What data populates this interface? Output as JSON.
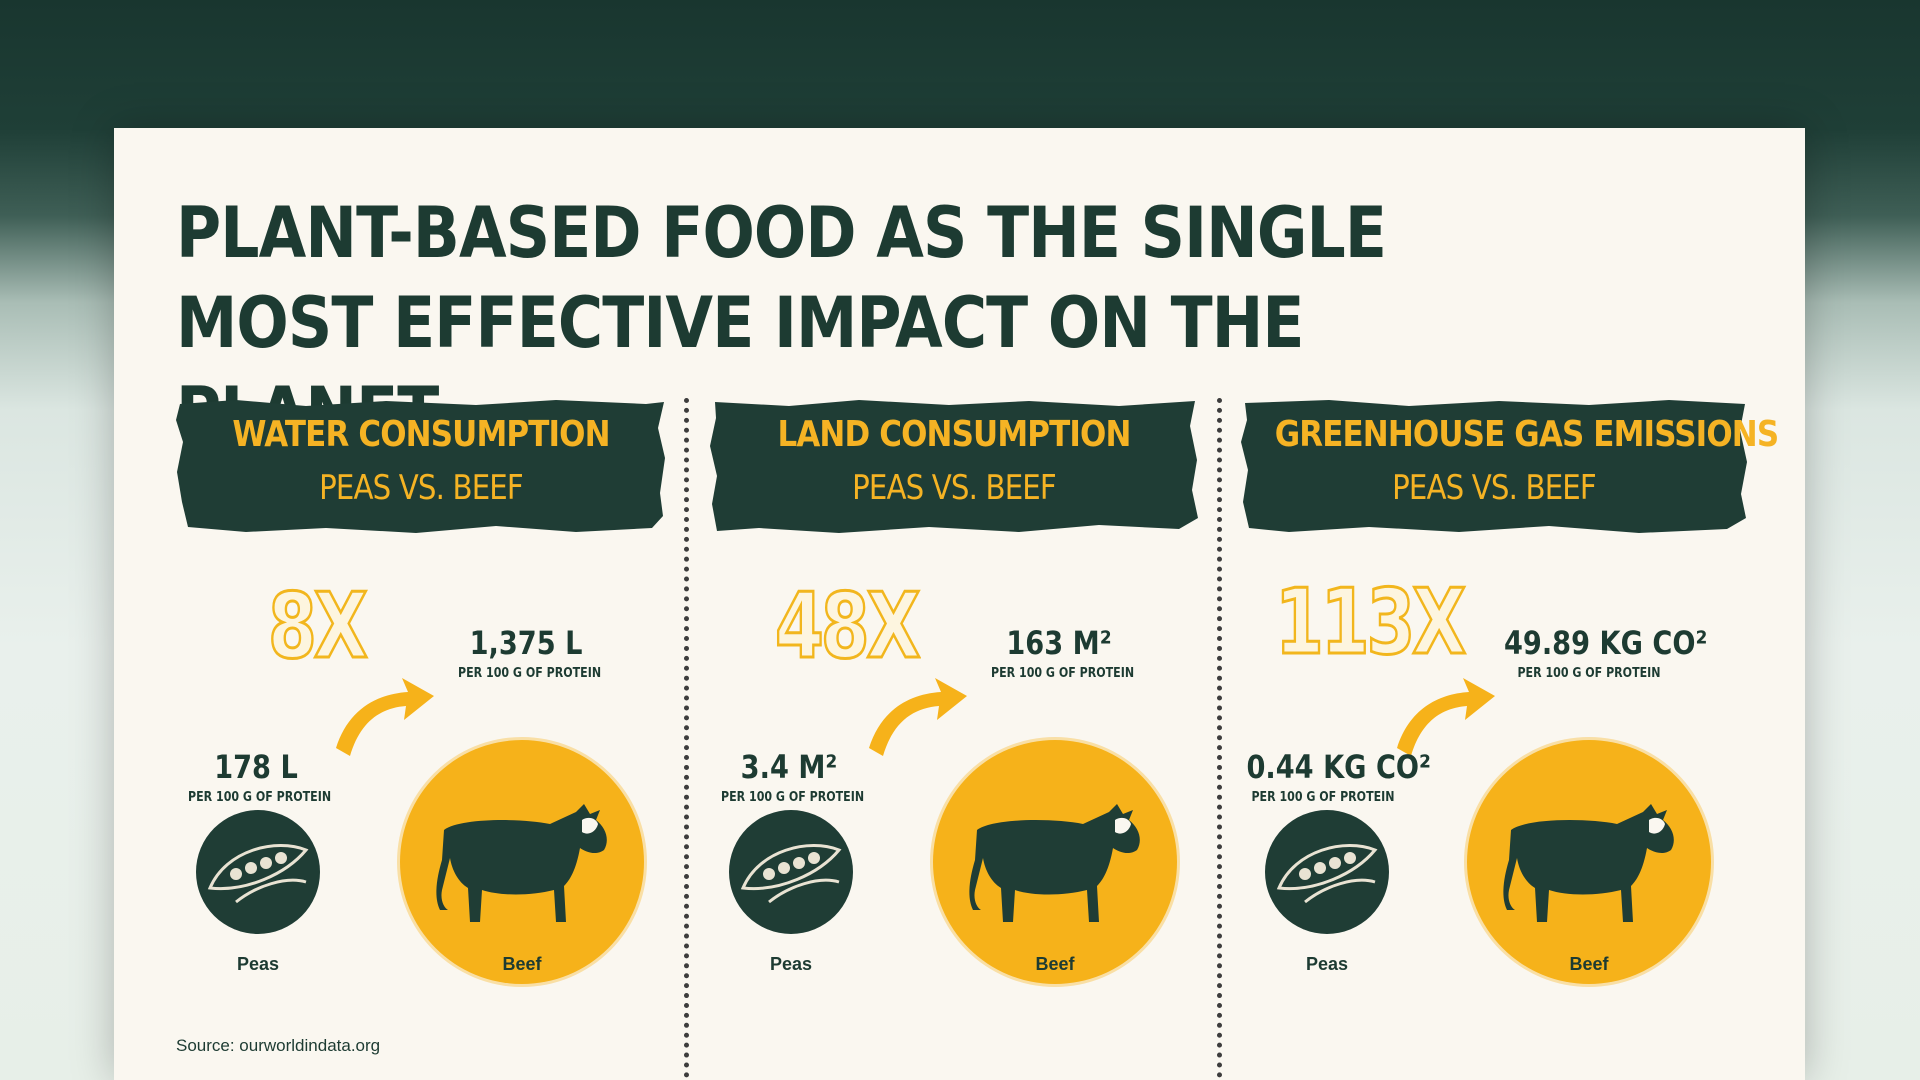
{
  "title": "PLANT-BASED FOOD AS THE SINGLE MOST EFFECTIVE IMPACT ON THE PLANET",
  "colors": {
    "dark_green": "#1d3b32",
    "yellow": "#f6b21a",
    "cream": "#faf7f0"
  },
  "panels": [
    {
      "heading": "WATER CONSUMPTION",
      "subheading": "PEAS VS. BEEF",
      "multiplier": "8X",
      "peas": {
        "value": "178 L",
        "unit": "PER 100 G OF PROTEIN",
        "label": "Peas"
      },
      "beef": {
        "value": "1,375 L",
        "unit": "PER 100 G OF PROTEIN",
        "label": "Beef"
      }
    },
    {
      "heading": "LAND CONSUMPTION",
      "subheading": "PEAS VS. BEEF",
      "multiplier": "48X",
      "peas": {
        "value": "3.4 M²",
        "unit": "PER 100 G OF PROTEIN",
        "label": "Peas"
      },
      "beef": {
        "value": "163 M²",
        "unit": "PER 100 G OF PROTEIN",
        "label": "Beef"
      }
    },
    {
      "heading": "GREENHOUSE GAS EMISSIONS",
      "subheading": "PEAS VS. BEEF",
      "multiplier": "113X",
      "peas": {
        "value": "0.44 KG CO²",
        "unit": "PER 100 G OF PROTEIN",
        "label": "Peas"
      },
      "beef": {
        "value": "49.89 KG CO²",
        "unit": "PER 100 G OF PROTEIN",
        "label": "Beef"
      }
    }
  ],
  "source": "Source:  ourworldindata.org",
  "icons": {
    "peas": "pea-pod-icon",
    "beef": "cow-icon",
    "arrow": "curved-arrow-icon"
  }
}
